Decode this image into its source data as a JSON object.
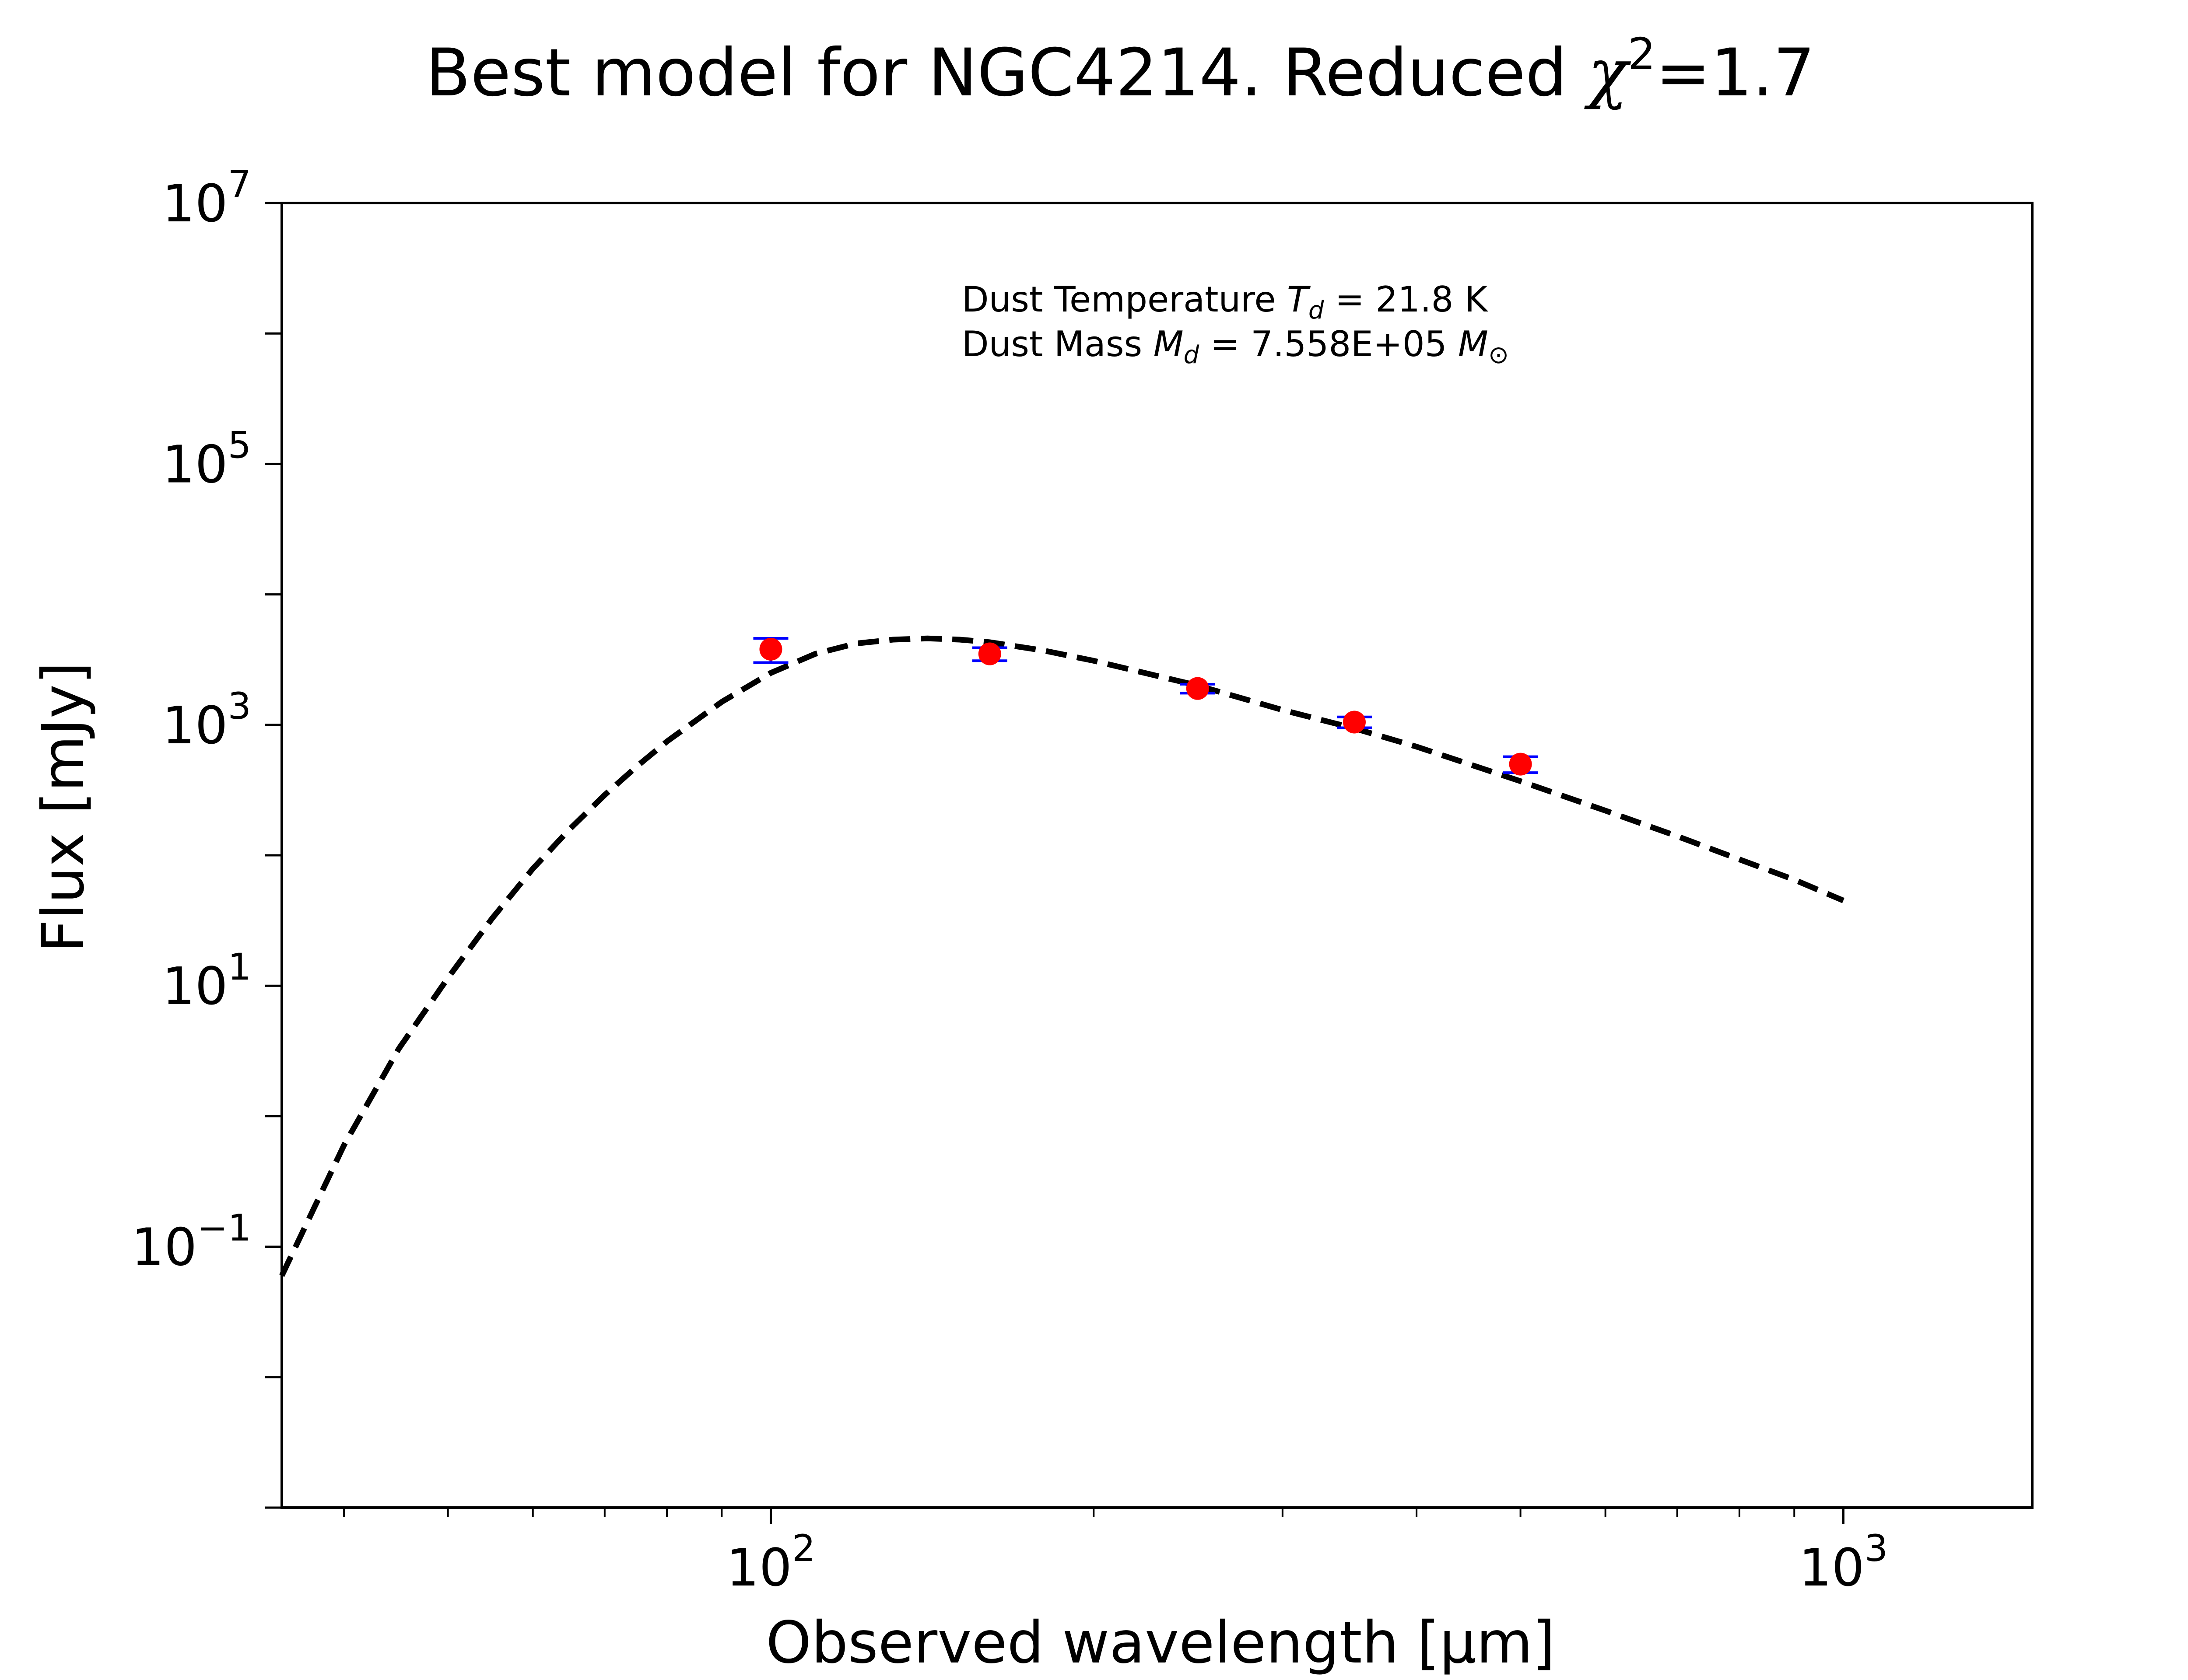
{
  "chart_data": {
    "type": "scatter",
    "title": {
      "prefix": "Best model for NGC4214. Reduced ",
      "chi": "χ",
      "sup": "2",
      "suffix": "=1.7"
    },
    "xlabel": "Observed wavelength [μm]",
    "ylabel": "Flux [mJy]",
    "xscale": "log",
    "yscale": "log",
    "xlim": [
      35,
      1500
    ],
    "ylim": [
      0.001,
      10000000
    ],
    "grid": false,
    "x_ticks": [
      {
        "value": 100,
        "base": "10",
        "exp": "2"
      },
      {
        "value": 1000,
        "base": "10",
        "exp": "3"
      }
    ],
    "y_ticks": [
      {
        "value": 0.1,
        "base": "10",
        "exp": "−1"
      },
      {
        "value": 10,
        "base": "10",
        "exp": "1"
      },
      {
        "value": 1000,
        "base": "10",
        "exp": "3"
      },
      {
        "value": 100000,
        "base": "10",
        "exp": "5"
      }
    ],
    "y_top_tick": {
      "value": 10000000,
      "base": "10",
      "exp": "7"
    },
    "annotations": {
      "temperature": {
        "prefix": "Dust Temperature ",
        "sym": "T",
        "sub": "d",
        "suffix": " = 21.8 K"
      },
      "mass": {
        "prefix": "Dust Mass ",
        "sym": "M",
        "sub": "d",
        "middle": " = 7.558E+05 ",
        "unit": "M",
        "unit_sub": "⊙"
      }
    },
    "model": {
      "style": "black dashed line",
      "x": [
        35,
        40,
        45,
        50,
        55,
        60,
        65,
        70,
        75,
        80,
        90,
        100,
        110,
        120,
        130,
        140,
        150,
        160,
        180,
        200,
        250,
        300,
        350,
        400,
        500,
        600,
        700,
        800,
        900,
        1000
      ],
      "y": [
        0.06,
        0.6,
        3.3,
        11.5,
        33,
        79,
        160,
        290,
        480,
        745,
        1500,
        2500,
        3500,
        4200,
        4500,
        4600,
        4500,
        4300,
        3700,
        3100,
        2000,
        1300,
        940,
        680,
        370,
        220,
        140,
        93,
        65,
        45
      ]
    },
    "observations": {
      "style": "red circles with blue error bars",
      "x": [
        100,
        160,
        250,
        350,
        500
      ],
      "y": [
        3800,
        3500,
        1900,
        1050,
        500
      ],
      "yerr": [
        800,
        400,
        150,
        100,
        70
      ]
    }
  }
}
